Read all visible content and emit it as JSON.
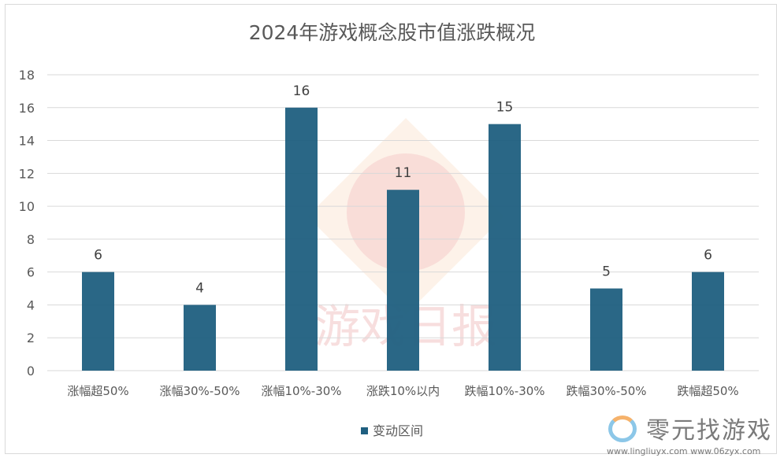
{
  "chart_data": {
    "type": "bar",
    "title": "2024年游戏概念股市值涨跌概况",
    "categories": [
      "涨幅超50%",
      "涨幅30%-50%",
      "涨幅10%-30%",
      "涨跌10%以内",
      "跌幅10%-30%",
      "跌幅30%-50%",
      "跌幅超50%"
    ],
    "series": [
      {
        "name": "变动区间",
        "values": [
          6,
          4,
          16,
          11,
          15,
          5,
          6
        ],
        "color": "#1f5f80"
      }
    ],
    "xlabel": "",
    "ylabel": "",
    "ylim": [
      0,
      18
    ],
    "yticks": [
      0,
      2,
      4,
      6,
      8,
      10,
      12,
      14,
      16,
      18
    ],
    "grid": true,
    "legend": "bottom",
    "data_labels": true
  },
  "watermarks": {
    "center": "游戏日报",
    "corner_brand": "零元找游戏",
    "corner_url": "www.lingliuyx.com   www.06zyx.com"
  }
}
